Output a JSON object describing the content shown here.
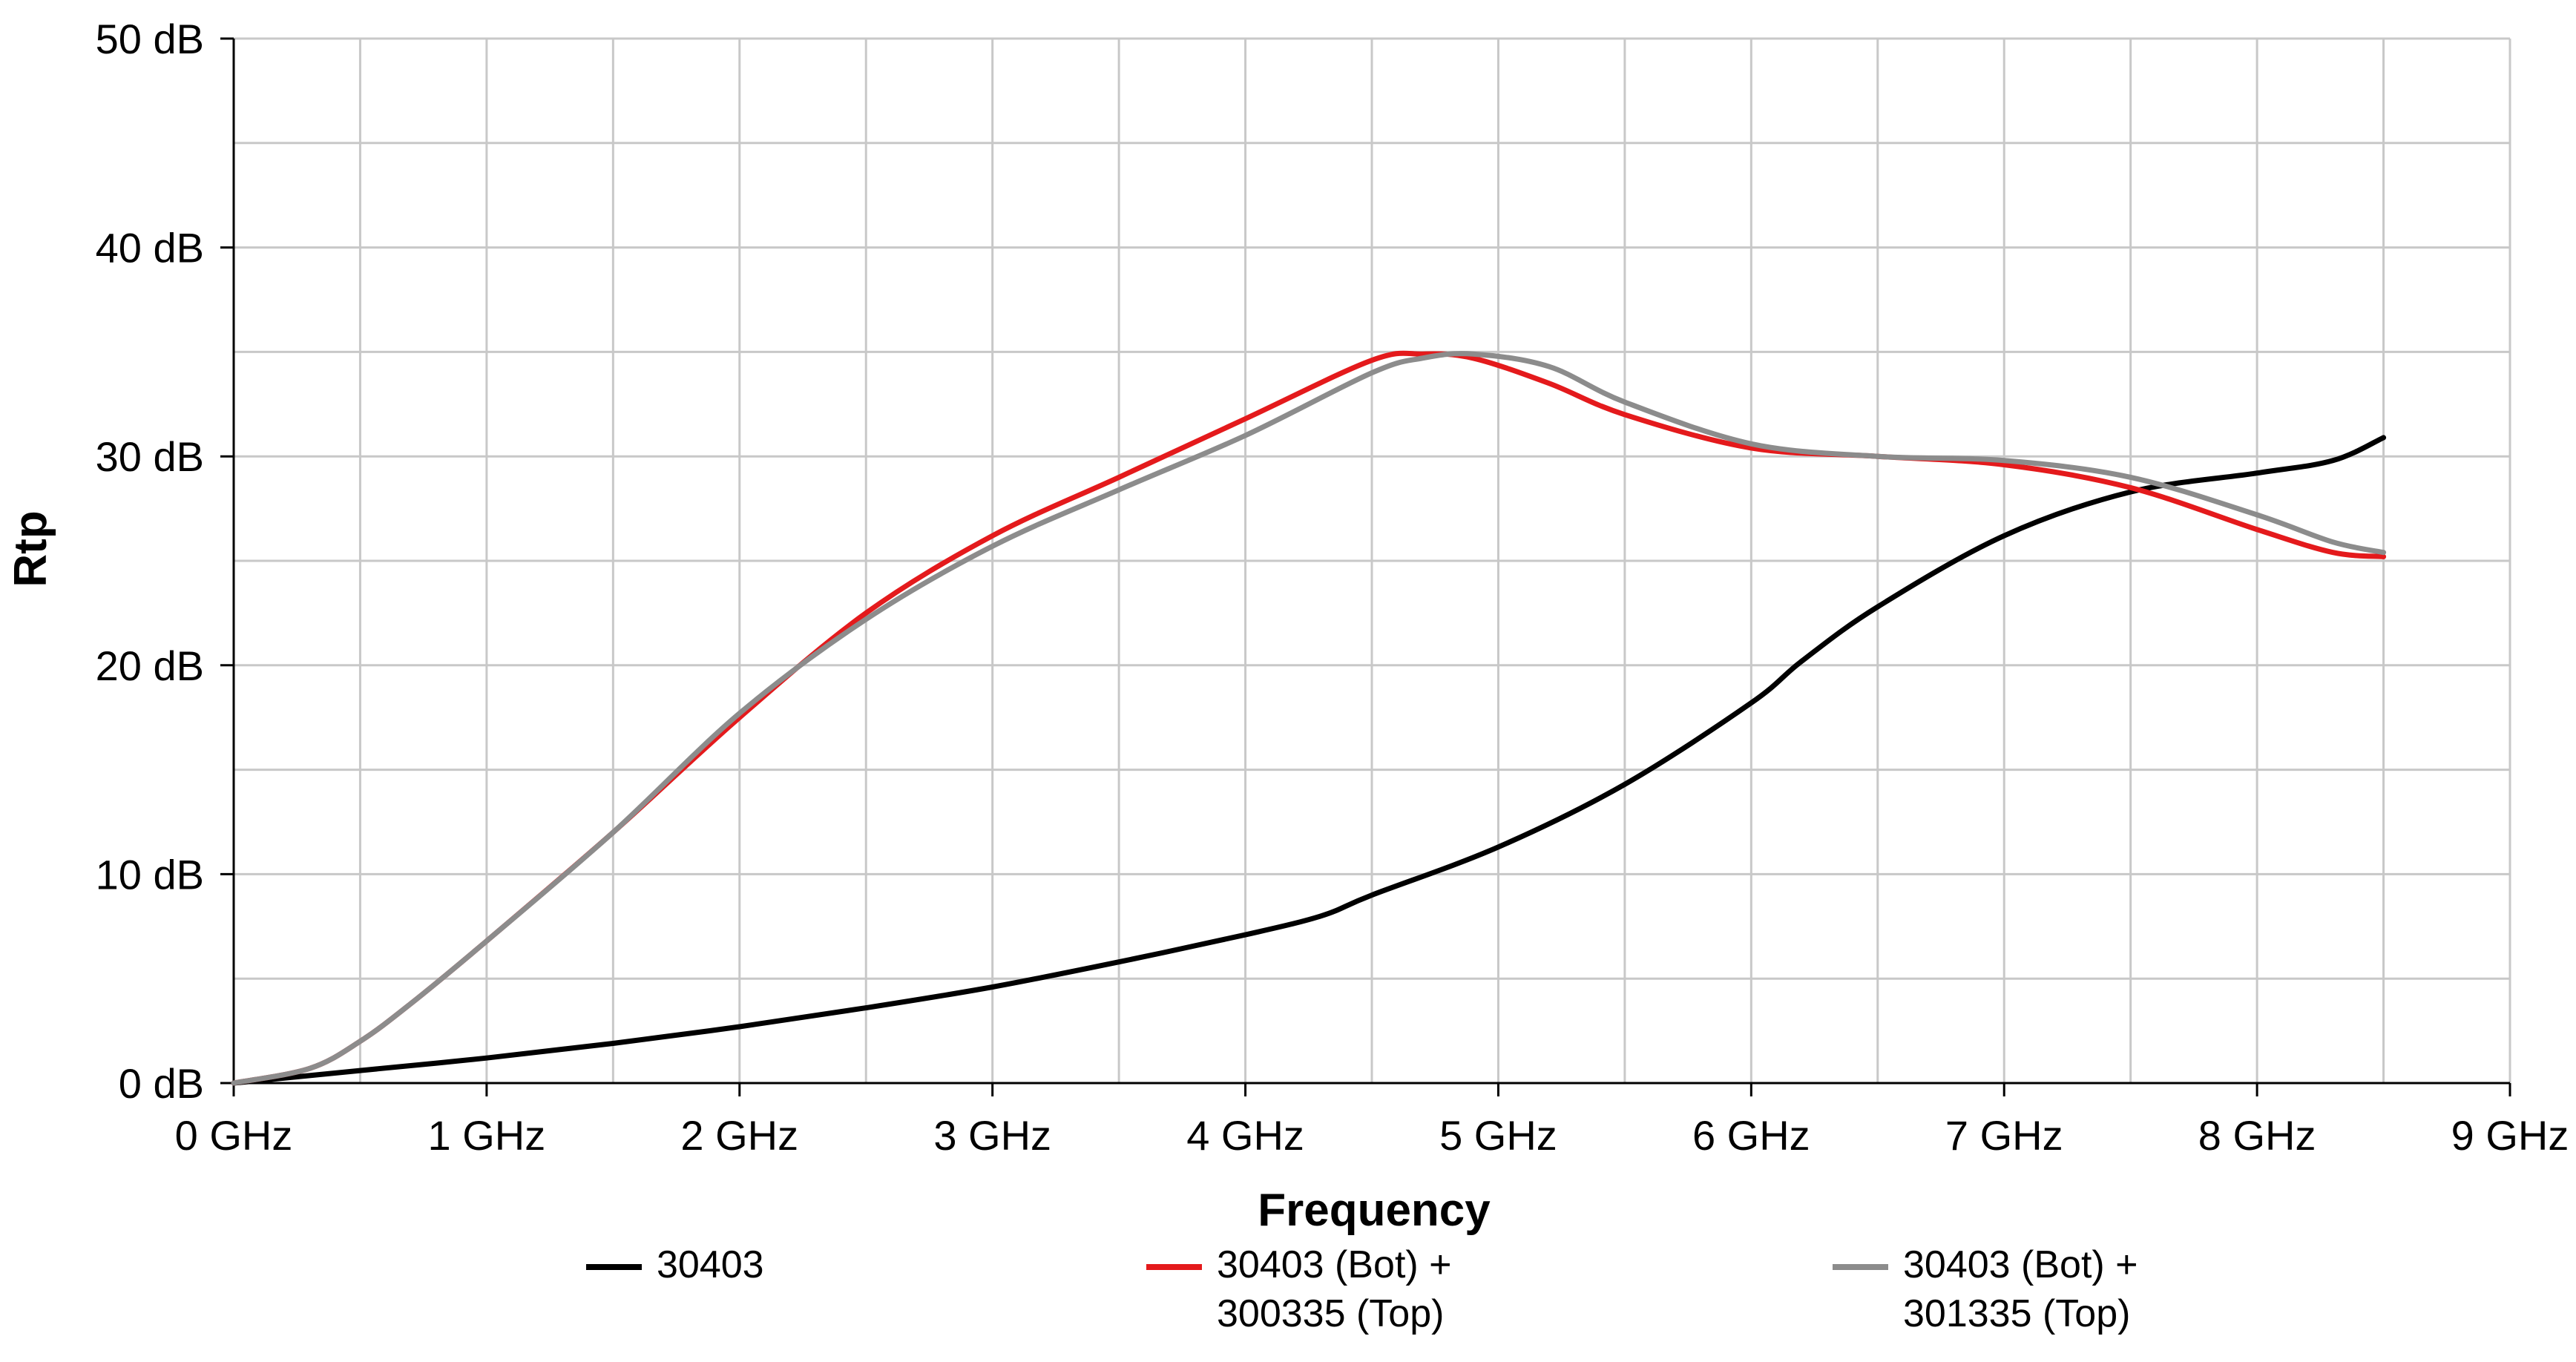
{
  "chart_data": {
    "type": "line",
    "xlabel": "Frequency",
    "ylabel": "Rtp",
    "xlim": [
      0,
      9
    ],
    "ylim": [
      0,
      50
    ],
    "grid": true,
    "legend_position": "bottom",
    "x_ticks": [
      "0 GHz",
      "1 GHz",
      "2 GHz",
      "3 GHz",
      "4 GHz",
      "5 GHz",
      "6 GHz",
      "7 GHz",
      "8 GHz",
      "9 GHz"
    ],
    "y_ticks": [
      "0 dB",
      "10 dB",
      "20 dB",
      "30 dB",
      "40 dB",
      "50 dB"
    ],
    "x_tick_values": [
      0,
      1,
      2,
      3,
      4,
      5,
      6,
      7,
      8,
      9
    ],
    "y_tick_values": [
      0,
      10,
      20,
      30,
      40,
      50
    ],
    "series": [
      {
        "name": "30403",
        "color": "#000000",
        "x": [
          0,
          0.5,
          1.0,
          1.5,
          2.0,
          2.5,
          3.0,
          3.5,
          4.0,
          4.3,
          4.5,
          5.0,
          5.5,
          6.0,
          6.2,
          6.5,
          7.0,
          7.5,
          8.0,
          8.3,
          8.5
        ],
        "y": [
          0,
          0.6,
          1.2,
          1.9,
          2.7,
          3.6,
          4.6,
          5.8,
          7.1,
          8.0,
          9.0,
          11.3,
          14.3,
          18.2,
          20.2,
          22.8,
          26.2,
          28.3,
          29.2,
          29.8,
          30.9
        ]
      },
      {
        "name": "30403 (Bot) +\n300335 (Top)",
        "label_lines": [
          "30403 (Bot) +",
          "300335 (Top)"
        ],
        "color": "#e41a1c",
        "x": [
          0,
          0.3,
          0.5,
          0.7,
          1.0,
          1.5,
          2.0,
          2.5,
          3.0,
          3.5,
          4.0,
          4.5,
          4.7,
          4.9,
          5.2,
          5.5,
          6.0,
          6.5,
          7.0,
          7.5,
          8.0,
          8.3,
          8.5
        ],
        "y": [
          0,
          0.7,
          2.0,
          3.8,
          6.8,
          12.0,
          17.5,
          22.5,
          26.2,
          29.0,
          31.8,
          34.6,
          34.9,
          34.7,
          33.5,
          32.0,
          30.4,
          30.0,
          29.6,
          28.5,
          26.5,
          25.4,
          25.2
        ]
      },
      {
        "name": "30403 (Bot) +\n301335 (Top)",
        "label_lines": [
          "30403 (Bot) +",
          "301335 (Top)"
        ],
        "color": "#8c8c8c",
        "x": [
          0,
          0.3,
          0.5,
          0.7,
          1.0,
          1.5,
          2.0,
          2.5,
          3.0,
          3.5,
          4.0,
          4.5,
          4.7,
          4.9,
          5.2,
          5.5,
          6.0,
          6.5,
          7.0,
          7.5,
          8.0,
          8.3,
          8.5
        ],
        "y": [
          0,
          0.7,
          2.0,
          3.8,
          6.8,
          12.0,
          17.7,
          22.2,
          25.7,
          28.4,
          31.0,
          34.0,
          34.7,
          34.9,
          34.3,
          32.6,
          30.6,
          30.0,
          29.8,
          29.0,
          27.2,
          25.9,
          25.4
        ]
      }
    ]
  }
}
